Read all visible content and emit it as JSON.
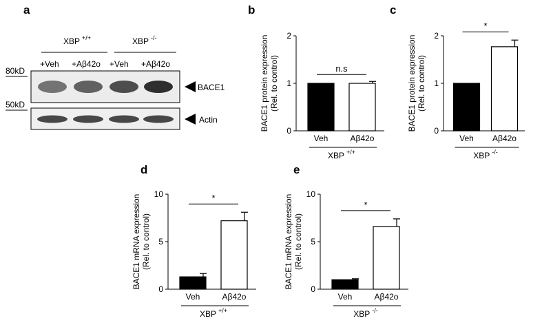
{
  "panel_letters": [
    "a",
    "b",
    "c",
    "d",
    "e"
  ],
  "blot": {
    "groups": [
      {
        "label": "XBP",
        "sup": "+/+"
      },
      {
        "label": "XBP",
        "sup": "-/-"
      }
    ],
    "lanes": [
      "+Veh",
      "+Aβ42o",
      "+Veh",
      "+Aβ42o"
    ],
    "markers": [
      "80kD",
      "50kD"
    ],
    "bands": [
      "BACE1",
      "Actin"
    ],
    "band_intensity": {
      "BACE1": [
        0.55,
        0.62,
        0.7,
        0.82
      ],
      "Actin": [
        0.72,
        0.72,
        0.72,
        0.72
      ]
    }
  },
  "chart_data": [
    {
      "panel": "b",
      "type": "bar",
      "categories": [
        "Veh",
        "Aβ42o"
      ],
      "values": [
        1.0,
        1.0
      ],
      "errors": [
        0,
        0.04
      ],
      "fills": [
        "#000000",
        "#ffffff"
      ],
      "ylabel": "BACE1 protein expression",
      "ylabel2": "(Rel. to control)",
      "ylim": [
        0,
        2
      ],
      "yticks": [
        "0",
        "1",
        "2"
      ],
      "group": {
        "label": "XBP",
        "sup": "+/+"
      },
      "significance": "n.s"
    },
    {
      "panel": "c",
      "type": "bar",
      "categories": [
        "Veh",
        "Aβ42o"
      ],
      "values": [
        1.0,
        1.77
      ],
      "errors": [
        0,
        0.14
      ],
      "fills": [
        "#000000",
        "#ffffff"
      ],
      "ylabel": "BACE1 protein expression",
      "ylabel2": "(Rel. to control)",
      "ylim": [
        0,
        2
      ],
      "yticks": [
        "0",
        "1",
        "2"
      ],
      "group": {
        "label": "XBP",
        "sup": "-/-"
      },
      "significance": "*"
    },
    {
      "panel": "d",
      "type": "bar",
      "categories": [
        "Veh",
        "Aβ42o"
      ],
      "values": [
        1.3,
        7.2
      ],
      "errors": [
        0.35,
        0.9
      ],
      "fills": [
        "#000000",
        "#ffffff"
      ],
      "ylabel": "BACE1 mRNA expression",
      "ylabel2": "(Rel. to control)",
      "ylim": [
        0,
        10
      ],
      "yticks": [
        "0",
        "5",
        "10"
      ],
      "group": {
        "label": "XBP",
        "sup": "+/+"
      },
      "significance": "*"
    },
    {
      "panel": "e",
      "type": "bar",
      "categories": [
        "Veh",
        "Aβ42o"
      ],
      "values": [
        1.0,
        6.6
      ],
      "errors": [
        0.1,
        0.8
      ],
      "fills": [
        "#000000",
        "#ffffff"
      ],
      "ylabel": "BACE1 mRNA expression",
      "ylabel2": "(Rel. to control)",
      "ylim": [
        0,
        10
      ],
      "yticks": [
        "0",
        "5",
        "10"
      ],
      "group": {
        "label": "XBP",
        "sup": "-/-"
      },
      "significance": "*"
    }
  ]
}
